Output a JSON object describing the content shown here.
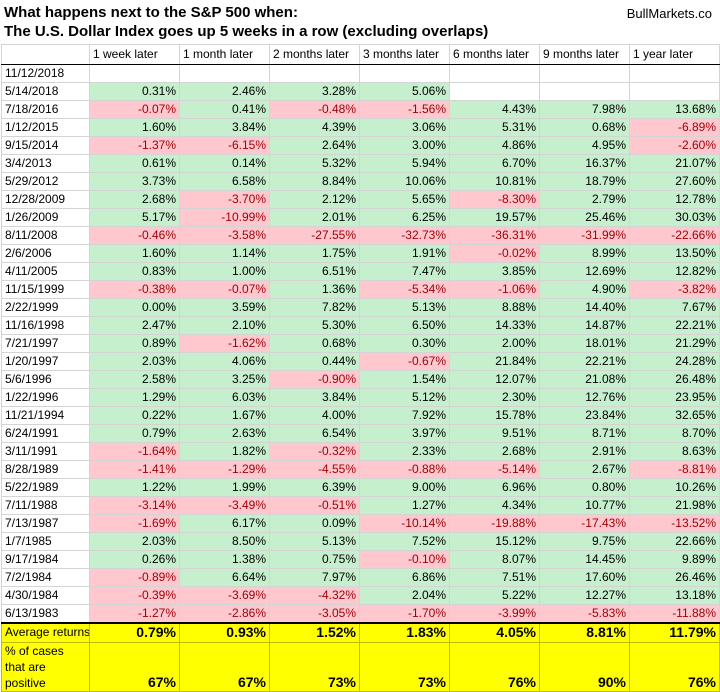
{
  "header": {
    "title_line1": "What happens next to the S&P 500 when:",
    "title_line2": "The U.S. Dollar Index goes up 5 weeks in a row (excluding overlaps)",
    "brand": "BullMarkets.co"
  },
  "colors": {
    "positive_fill": "#c6efce",
    "negative_fill": "#ffc7ce",
    "negative_text": "#9c0006",
    "summary_fill": "#ffff00"
  },
  "chart_data": {
    "type": "table",
    "columns": [
      "",
      "1 week later",
      "1 month later",
      "2 months later",
      "3 months later",
      "6 months later",
      "9 months later",
      "1 year later"
    ],
    "rows": [
      {
        "date": "11/12/2018",
        "values": [
          "",
          "",
          "",
          "",
          "",
          "",
          ""
        ]
      },
      {
        "date": "5/14/2018",
        "values": [
          "0.31%",
          "2.46%",
          "3.28%",
          "5.06%",
          "",
          "",
          ""
        ]
      },
      {
        "date": "7/18/2016",
        "values": [
          "-0.07%",
          "0.41%",
          "-0.48%",
          "-1.56%",
          "4.43%",
          "7.98%",
          "13.68%"
        ]
      },
      {
        "date": "1/12/2015",
        "values": [
          "1.60%",
          "3.84%",
          "4.39%",
          "3.06%",
          "5.31%",
          "0.68%",
          "-6.89%"
        ]
      },
      {
        "date": "9/15/2014",
        "values": [
          "-1.37%",
          "-6.15%",
          "2.64%",
          "3.00%",
          "4.86%",
          "4.95%",
          "-2.60%"
        ]
      },
      {
        "date": "3/4/2013",
        "values": [
          "0.61%",
          "0.14%",
          "5.32%",
          "5.94%",
          "6.70%",
          "16.37%",
          "21.07%"
        ]
      },
      {
        "date": "5/29/2012",
        "values": [
          "3.73%",
          "6.58%",
          "8.84%",
          "10.06%",
          "10.81%",
          "18.79%",
          "27.60%"
        ]
      },
      {
        "date": "12/28/2009",
        "values": [
          "2.68%",
          "-3.70%",
          "2.12%",
          "5.65%",
          "-8.30%",
          "2.79%",
          "12.78%"
        ]
      },
      {
        "date": "1/26/2009",
        "values": [
          "5.17%",
          "-10.99%",
          "2.01%",
          "6.25%",
          "19.57%",
          "25.46%",
          "30.03%"
        ]
      },
      {
        "date": "8/11/2008",
        "values": [
          "-0.46%",
          "-3.58%",
          "-27.55%",
          "-32.73%",
          "-36.31%",
          "-31.99%",
          "-22.66%"
        ]
      },
      {
        "date": "2/6/2006",
        "values": [
          "1.60%",
          "1.14%",
          "1.75%",
          "1.91%",
          "-0.02%",
          "8.99%",
          "13.50%"
        ]
      },
      {
        "date": "4/11/2005",
        "values": [
          "0.83%",
          "1.00%",
          "6.51%",
          "7.47%",
          "3.85%",
          "12.69%",
          "12.82%"
        ]
      },
      {
        "date": "11/15/1999",
        "values": [
          "-0.38%",
          "-0.07%",
          "1.36%",
          "-5.34%",
          "-1.06%",
          "4.90%",
          "-3.82%"
        ]
      },
      {
        "date": "2/22/1999",
        "values": [
          "0.00%",
          "3.59%",
          "7.82%",
          "5.13%",
          "8.88%",
          "14.40%",
          "7.67%"
        ]
      },
      {
        "date": "11/16/1998",
        "values": [
          "2.47%",
          "2.10%",
          "5.30%",
          "6.50%",
          "14.33%",
          "14.87%",
          "22.21%"
        ]
      },
      {
        "date": "7/21/1997",
        "values": [
          "0.89%",
          "-1.62%",
          "0.68%",
          "0.30%",
          "2.00%",
          "18.01%",
          "21.29%"
        ]
      },
      {
        "date": "1/20/1997",
        "values": [
          "2.03%",
          "4.06%",
          "0.44%",
          "-0.67%",
          "21.84%",
          "22.21%",
          "24.28%"
        ]
      },
      {
        "date": "5/6/1996",
        "values": [
          "2.58%",
          "3.25%",
          "-0.90%",
          "1.54%",
          "12.07%",
          "21.08%",
          "26.48%"
        ]
      },
      {
        "date": "1/22/1996",
        "values": [
          "1.29%",
          "6.03%",
          "3.84%",
          "5.12%",
          "2.30%",
          "12.76%",
          "23.95%"
        ]
      },
      {
        "date": "11/21/1994",
        "values": [
          "0.22%",
          "1.67%",
          "4.00%",
          "7.92%",
          "15.78%",
          "23.84%",
          "32.65%"
        ]
      },
      {
        "date": "6/24/1991",
        "values": [
          "0.79%",
          "2.63%",
          "6.54%",
          "3.97%",
          "9.51%",
          "8.71%",
          "8.70%"
        ]
      },
      {
        "date": "3/11/1991",
        "values": [
          "-1.64%",
          "1.82%",
          "-0.32%",
          "2.33%",
          "2.68%",
          "2.91%",
          "8.63%"
        ]
      },
      {
        "date": "8/28/1989",
        "values": [
          "-1.41%",
          "-1.29%",
          "-4.55%",
          "-0.88%",
          "-5.14%",
          "2.67%",
          "-8.81%"
        ]
      },
      {
        "date": "5/22/1989",
        "values": [
          "1.22%",
          "1.99%",
          "6.39%",
          "9.00%",
          "6.96%",
          "0.80%",
          "10.26%"
        ]
      },
      {
        "date": "7/11/1988",
        "values": [
          "-3.14%",
          "-3.49%",
          "-0.51%",
          "1.27%",
          "4.34%",
          "10.77%",
          "21.98%"
        ]
      },
      {
        "date": "7/13/1987",
        "values": [
          "-1.69%",
          "6.17%",
          "0.09%",
          "-10.14%",
          "-19.88%",
          "-17.43%",
          "-13.52%"
        ]
      },
      {
        "date": "1/7/1985",
        "values": [
          "2.03%",
          "8.50%",
          "5.13%",
          "7.52%",
          "15.12%",
          "9.75%",
          "22.66%"
        ]
      },
      {
        "date": "9/17/1984",
        "values": [
          "0.26%",
          "1.38%",
          "0.75%",
          "-0.10%",
          "8.07%",
          "14.45%",
          "9.89%"
        ]
      },
      {
        "date": "7/2/1984",
        "values": [
          "-0.89%",
          "6.64%",
          "7.97%",
          "6.86%",
          "7.51%",
          "17.60%",
          "26.46%"
        ]
      },
      {
        "date": "4/30/1984",
        "values": [
          "-0.39%",
          "-3.69%",
          "-4.32%",
          "2.04%",
          "5.22%",
          "12.27%",
          "13.18%"
        ]
      },
      {
        "date": "6/13/1983",
        "values": [
          "-1.27%",
          "-2.86%",
          "-3.05%",
          "-1.70%",
          "-3.99%",
          "-5.83%",
          "-11.88%"
        ]
      }
    ],
    "summary": [
      {
        "label": "Average returns",
        "values": [
          "0.79%",
          "0.93%",
          "1.52%",
          "1.83%",
          "4.05%",
          "8.81%",
          "11.79%"
        ]
      },
      {
        "label": "% of cases that are positive",
        "values": [
          "67%",
          "67%",
          "73%",
          "73%",
          "76%",
          "90%",
          "76%"
        ]
      }
    ]
  }
}
